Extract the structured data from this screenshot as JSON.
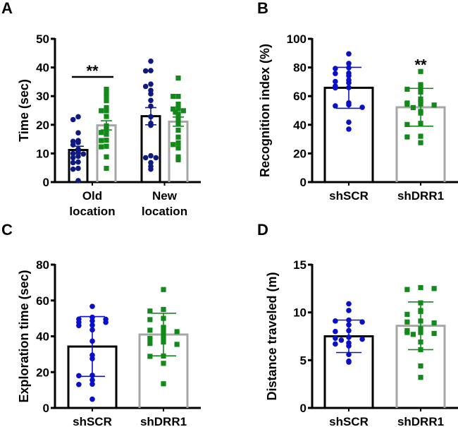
{
  "colors": {
    "shSCR_bar": "#000000",
    "shDRR1_bar": "#a6a6a6",
    "shSCR_points_A": "#0f1a80",
    "shSCR_points": "#0a10c8",
    "shDRR1_points": "#118a1a"
  },
  "chart_data": [
    {
      "panel": "A",
      "type": "bar",
      "ylabel": "Time  (sec)",
      "ylim": [
        0,
        50
      ],
      "yticks": [
        0,
        10,
        20,
        30,
        40,
        50
      ],
      "categories": [
        "Old\nlocation",
        "New\nlocation"
      ],
      "category_lines": [
        [
          "Old",
          "location"
        ],
        [
          "New",
          "location"
        ]
      ],
      "series": [
        {
          "name": "shSCR",
          "marker": "circle",
          "means": [
            11.2,
            23.0
          ],
          "errors": [
            1.3,
            3.0
          ],
          "points": [
            [
              22.8,
              21.8,
              17.2,
              14.5,
              14.2,
              13.8,
              13.0,
              11.5,
              10.5,
              10.0,
              9.8,
              9.0,
              8.5,
              7.0,
              6.8,
              4.8,
              4.5,
              0.5
            ],
            [
              42.2,
              38.9,
              38.8,
              34.2,
              33.4,
              32.0,
              30.8,
              28.5,
              26.5,
              22.8,
              20.5,
              19.8,
              9.2,
              8.5,
              8.5,
              6.8,
              5.5,
              4.5
            ]
          ]
        },
        {
          "name": "shDRR1",
          "marker": "square",
          "means": [
            19.8,
            21.1
          ],
          "errors": [
            1.6,
            1.6
          ],
          "points": [
            [
              32.4,
              30.9,
              30.0,
              28.4,
              26.0,
              24.9,
              24.9,
              22.9,
              19.6,
              18.4,
              17.3,
              16.7,
              14.6,
              14.5,
              12.5,
              12.3,
              8.8,
              4.8
            ],
            [
              36.3,
              29.9,
              29.9,
              27.2,
              25.6,
              25.5,
              24.9,
              24.4,
              23.7,
              22.1,
              20.5,
              18.1,
              15.7,
              13.7,
              13.1,
              11.9,
              8.8,
              7.8
            ]
          ]
        }
      ],
      "annotations": [
        {
          "text": "**",
          "between": "Old location shSCR vs shDRR1"
        }
      ]
    },
    {
      "panel": "B",
      "type": "bar",
      "ylabel": "Recognition index (%)",
      "ylim": [
        0,
        100
      ],
      "yticks": [
        0,
        20,
        40,
        60,
        80,
        100
      ],
      "categories": [
        "shSCR",
        "shDRR1"
      ],
      "means": [
        65.8,
        52.2
      ],
      "errors": [
        14.3,
        13.2
      ],
      "points": [
        [
          89.5,
          82.8,
          79.8,
          79.3,
          76.0,
          75.8,
          74.2,
          71.2,
          70.2,
          69.3,
          67.0,
          66.0,
          65.8,
          55.3,
          54.0,
          53.2,
          52.2,
          41.8,
          37.0
        ],
        [
          77.2,
          68.0,
          65.3,
          64.8,
          62.8,
          58.0,
          56.3,
          55.2,
          54.5,
          54.3,
          53.8,
          52.0,
          49.3,
          48.2,
          41.0,
          40.2,
          32.0,
          31.5,
          27.5
        ]
      ],
      "annotations": [
        {
          "text": "**",
          "over": "shDRR1"
        }
      ]
    },
    {
      "panel": "C",
      "type": "bar",
      "ylabel": "Exploration time (sec)",
      "ylim": [
        0,
        80
      ],
      "yticks": [
        0,
        20,
        40,
        60,
        80
      ],
      "categories": [
        "shSCR",
        "shDRR1"
      ],
      "means": [
        34.3,
        41.0
      ],
      "errors": [
        16.7,
        11.9
      ],
      "points": [
        [
          56.7,
          50.6,
          49.6,
          49.5,
          48.6,
          47.8,
          47.8,
          46.2,
          46.0,
          43.6,
          37.3,
          29.5,
          27.5,
          18.2,
          18.0,
          15.6,
          13.3,
          13.1,
          4.9
        ],
        [
          66.1,
          55.0,
          54.1,
          50.0,
          49.3,
          45.0,
          44.2,
          43.4,
          42.6,
          41.5,
          39.0,
          38.8,
          36.8,
          36.0,
          35.5,
          29.0,
          28.8,
          24.9,
          13.5
        ]
      ]
    },
    {
      "panel": "D",
      "type": "bar",
      "ylabel": "Distance traveled (m)",
      "ylim": [
        0,
        15
      ],
      "yticks": [
        0,
        5,
        10,
        15
      ],
      "categories": [
        "shSCR",
        "shDRR1"
      ],
      "means": [
        7.5,
        8.6
      ],
      "errors": [
        1.7,
        2.5
      ],
      "points": [
        [
          10.9,
          10.2,
          9.2,
          9.1,
          9.0,
          8.7,
          8.1,
          8.0,
          7.4,
          7.3,
          7.2,
          7.1,
          6.8,
          6.7,
          6.5,
          5.6,
          4.9,
          4.8
        ],
        [
          12.6,
          12.4,
          12.5,
          11.0,
          10.2,
          10.1,
          9.8,
          9.1,
          9.0,
          8.9,
          8.3,
          8.1,
          7.9,
          7.9,
          7.8,
          7.7,
          6.9,
          6.1,
          4.4,
          3.2
        ]
      ]
    }
  ],
  "panels": {
    "A": {
      "letter": "A"
    },
    "B": {
      "letter": "B"
    },
    "C": {
      "letter": "C"
    },
    "D": {
      "letter": "D"
    }
  }
}
